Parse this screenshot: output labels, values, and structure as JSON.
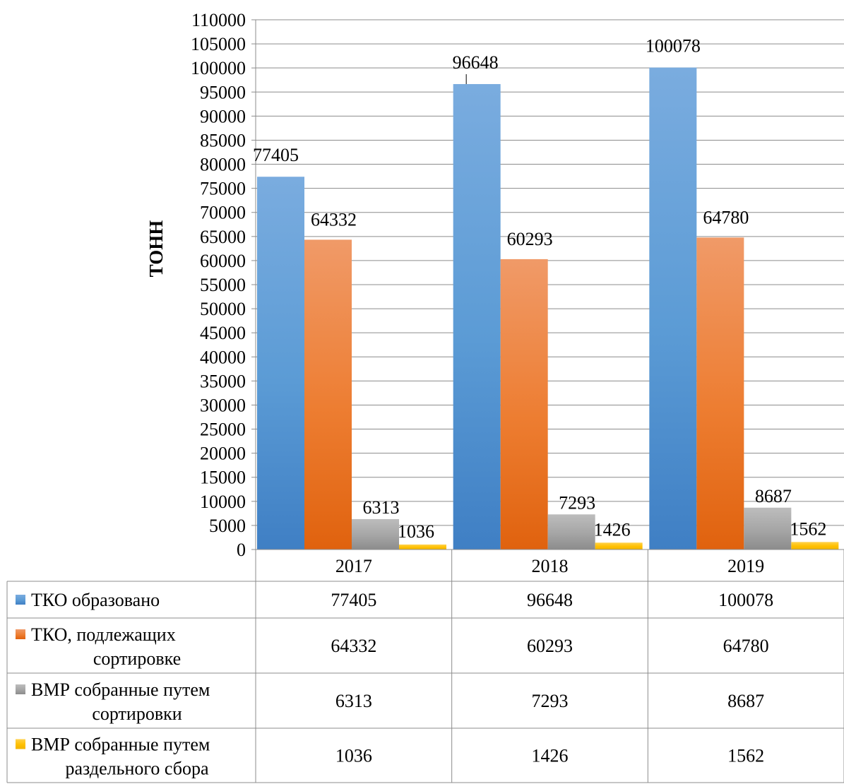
{
  "chart_data": {
    "type": "bar",
    "ylabel": "ТОНН",
    "ylim": [
      0,
      110000
    ],
    "ytick_step": 5000,
    "yticks": [
      "0",
      "5000",
      "10000",
      "15000",
      "20000",
      "25000",
      "30000",
      "35000",
      "40000",
      "45000",
      "50000",
      "55000",
      "60000",
      "65000",
      "70000",
      "75000",
      "80000",
      "85000",
      "90000",
      "95000",
      "100000",
      "105000",
      "110000"
    ],
    "categories": [
      "2017",
      "2018",
      "2019"
    ],
    "grid": true,
    "legend": "data-table",
    "series": [
      {
        "name": "ТКО образовано",
        "table_label": [
          "ТКО образовано"
        ],
        "values": [
          77405,
          96648,
          100078
        ],
        "labels": [
          "77405",
          "96648",
          "100078"
        ],
        "color": "#5b9bd5",
        "color_top": "#7aacdf",
        "color_bottom": "#3f7fc4"
      },
      {
        "name": "ТКО, подлежащих сортировке",
        "table_label": [
          "ТКО, подлежащих",
          "сортировке"
        ],
        "values": [
          64332,
          60293,
          64780
        ],
        "labels": [
          "64332",
          "60293",
          "64780"
        ],
        "color": "#ed7d31",
        "color_top": "#f09a68",
        "color_bottom": "#e0620e"
      },
      {
        "name": "ВМР собранные путем сортировки",
        "table_label": [
          "ВМР собранные путем",
          "сортировки"
        ],
        "values": [
          6313,
          7293,
          8687
        ],
        "labels": [
          "6313",
          "7293",
          "8687"
        ],
        "color": "#a5a5a5",
        "color_top": "#bdbdbd",
        "color_bottom": "#8c8c8c"
      },
      {
        "name": "ВМР собранные путем раздельного сбора",
        "table_label": [
          "ВМР собранные путем",
          "раздельного сбора"
        ],
        "values": [
          1036,
          1426,
          1562
        ],
        "labels": [
          "1036",
          "1426",
          "1562"
        ],
        "color": "#ffc000",
        "color_top": "#ffd24d",
        "color_bottom": "#f2b400"
      }
    ]
  }
}
